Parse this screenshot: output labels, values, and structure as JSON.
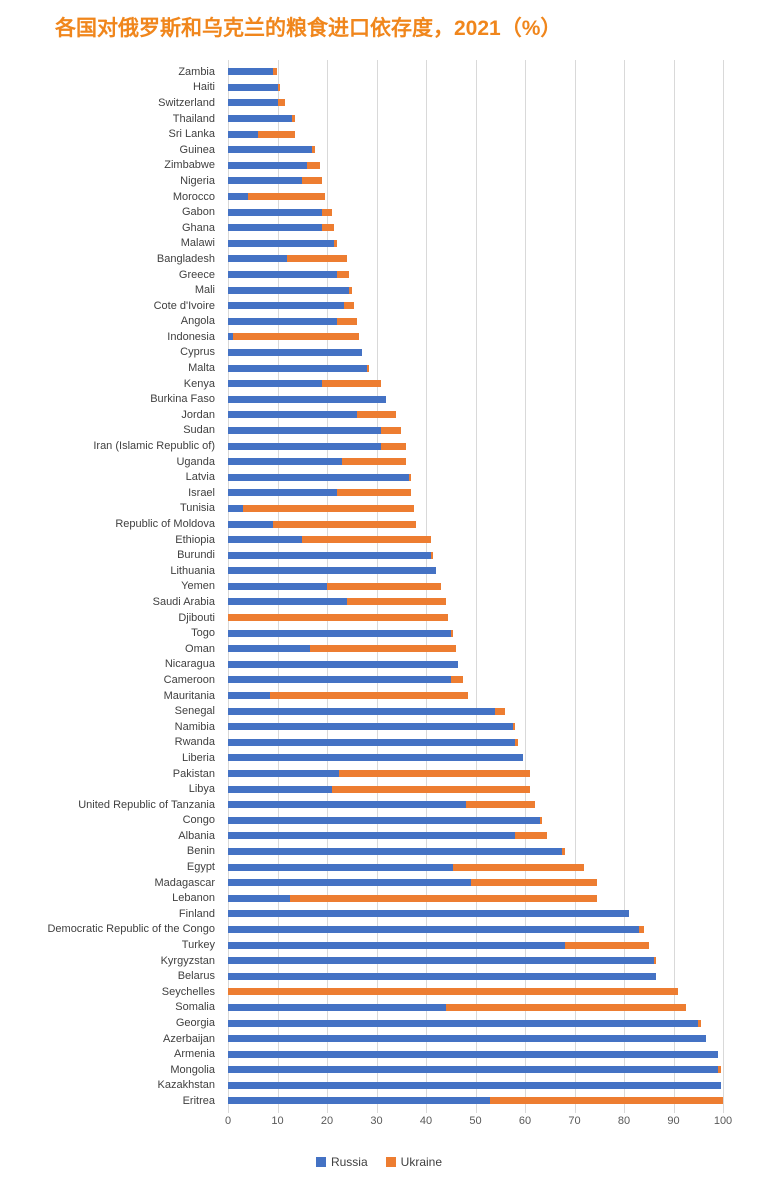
{
  "title": "各国对俄罗斯和乌克兰的粮食进口依存度，2021（%）",
  "title_color": "#F0861C",
  "chart_data": {
    "type": "bar",
    "orientation": "horizontal",
    "stacked": true,
    "title": "各国对俄罗斯和乌克兰的粮食进口依存度，2021（%）",
    "xlabel": "",
    "ylabel": "",
    "xlim": [
      0,
      100
    ],
    "xticks": [
      0,
      10,
      20,
      30,
      40,
      50,
      60,
      70,
      80,
      90,
      100
    ],
    "grid": true,
    "legend_position": "bottom",
    "categories": [
      "Zambia",
      "Haiti",
      "Switzerland",
      "Thailand",
      "Sri Lanka",
      "Guinea",
      "Zimbabwe",
      "Nigeria",
      "Morocco",
      "Gabon",
      "Ghana",
      "Malawi",
      "Bangladesh",
      "Greece",
      "Mali",
      "Cote d'Ivoire",
      "Angola",
      "Indonesia",
      "Cyprus",
      "Malta",
      "Kenya",
      "Burkina Faso",
      "Jordan",
      "Sudan",
      "Iran (Islamic Republic of)",
      "Uganda",
      "Latvia",
      "Israel",
      "Tunisia",
      "Republic of Moldova",
      "Ethiopia",
      "Burundi",
      "Lithuania",
      "Yemen",
      "Saudi Arabia",
      "Djibouti",
      "Togo",
      "Oman",
      "Nicaragua",
      "Cameroon",
      "Mauritania",
      "Senegal",
      "Namibia",
      "Rwanda",
      "Liberia",
      "Pakistan",
      "Libya",
      "United Republic of Tanzania",
      "Congo",
      "Albania",
      "Benin",
      "Egypt",
      "Madagascar",
      "Lebanon",
      "Finland",
      "Democratic Republic of the Congo",
      "Turkey",
      "Kyrgyzstan",
      "Belarus",
      "Seychelles",
      "Somalia",
      "Georgia",
      "Azerbaijan",
      "Armenia",
      "Mongolia",
      "Kazakhstan",
      "Eritrea"
    ],
    "series": [
      {
        "name": "Russia",
        "color": "#4472C4",
        "values": [
          9,
          10,
          10,
          13,
          6,
          17,
          16,
          15,
          4,
          19,
          19,
          21.5,
          12,
          22,
          24.5,
          23.5,
          22,
          1,
          27,
          28,
          19,
          32,
          26,
          31,
          31,
          23,
          36.5,
          22,
          3,
          9,
          15,
          41,
          42,
          20,
          24,
          0,
          45,
          16.5,
          46.5,
          45,
          8.5,
          54,
          57.5,
          58,
          59.5,
          22.5,
          21,
          48,
          63,
          58,
          67.5,
          45.5,
          49,
          12.5,
          81,
          83,
          68,
          86,
          86.5,
          0,
          44,
          95,
          96.5,
          99,
          99,
          99.5,
          53
        ]
      },
      {
        "name": "Ukraine",
        "color": "#ED7D31",
        "values": [
          1,
          0.5,
          1.5,
          0.5,
          7.5,
          0.5,
          2.5,
          4,
          15.5,
          2,
          2.5,
          0.5,
          12,
          2.5,
          0.5,
          2,
          4,
          25.5,
          0,
          0.5,
          12,
          0,
          8,
          4,
          5,
          13,
          0.5,
          15,
          34.5,
          29,
          26,
          0.5,
          0,
          23,
          20,
          44.5,
          0.5,
          29.5,
          0,
          2.5,
          40,
          2,
          0.5,
          0.5,
          0,
          38.5,
          40,
          14,
          0.5,
          6.5,
          0.5,
          26.5,
          25.5,
          62,
          0,
          1,
          17,
          0.5,
          0,
          91,
          48.5,
          0.5,
          0,
          0,
          0.5,
          0,
          47
        ]
      }
    ]
  }
}
